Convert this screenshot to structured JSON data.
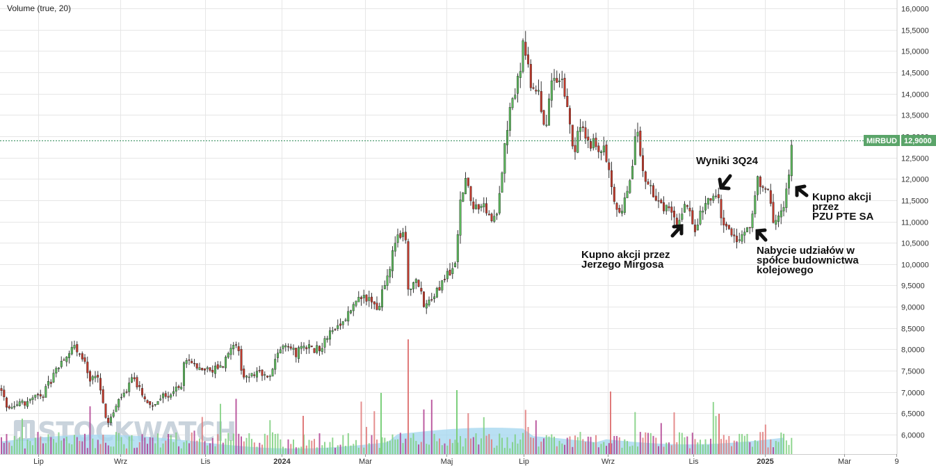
{
  "legend": {
    "label": "Volume (true, 20)"
  },
  "watermark": {
    "text": "STOCKWATCH"
  },
  "price_tag": {
    "symbol": "MIRBUD",
    "value": "12,9000"
  },
  "colors": {
    "up": "#5cb85c",
    "down": "#c0392b",
    "wick": "#333333",
    "vol_up": "#7ccf7c",
    "vol_down": "#e07a7a",
    "vol_mid": "#b04090",
    "vol_ma_fill": "#a8d8f0",
    "grid": "#e6e6e6",
    "price_line": "#2e8b57",
    "tag_bg": "#5aa469"
  },
  "annotations": [
    {
      "lines": [
        "Wyniki 3Q24"
      ]
    },
    {
      "lines": [
        "Kupno akcji",
        "przez",
        "PZU PTE SA"
      ]
    },
    {
      "lines": [
        "Kupno akcji przez",
        "Jerzego Mirgosa"
      ]
    },
    {
      "lines": [
        "Nabycie udziałów w",
        "spółce budownictwa",
        "kolejowego"
      ]
    }
  ],
  "chart_data": {
    "type": "candlestick",
    "y_axis": {
      "min": 5.5,
      "max": 16.0,
      "ticks": [
        {
          "v": 6.0,
          "label": "6,0000"
        },
        {
          "v": 6.5,
          "label": "6,5000"
        },
        {
          "v": 7.0,
          "label": "7,0000"
        },
        {
          "v": 7.5,
          "label": "7,5000"
        },
        {
          "v": 8.0,
          "label": "8,0000"
        },
        {
          "v": 8.5,
          "label": "8,5000"
        },
        {
          "v": 9.0,
          "label": "9,0000"
        },
        {
          "v": 9.5,
          "label": "9,5000"
        },
        {
          "v": 10.0,
          "label": "10,0000"
        },
        {
          "v": 10.5,
          "label": "10,5000"
        },
        {
          "v": 11.0,
          "label": "11,0000"
        },
        {
          "v": 11.5,
          "label": "11,5000"
        },
        {
          "v": 12.0,
          "label": "12,0000"
        },
        {
          "v": 12.5,
          "label": "12,5000"
        },
        {
          "v": 13.0,
          "label": "13,0000"
        },
        {
          "v": 13.5,
          "label": "13,5000"
        },
        {
          "v": 14.0,
          "label": "14,0000"
        },
        {
          "v": 14.5,
          "label": "14,5000"
        },
        {
          "v": 15.0,
          "label": "15,0000"
        },
        {
          "v": 15.5,
          "label": "15,5000"
        },
        {
          "v": 16.0,
          "label": "16,0000"
        }
      ]
    },
    "x_axis": {
      "ticks": [
        {
          "label": "Lip",
          "bold": false
        },
        {
          "label": "Wrz",
          "bold": false
        },
        {
          "label": "Lis",
          "bold": false
        },
        {
          "label": "2024",
          "bold": true
        },
        {
          "label": "Mar",
          "bold": false
        },
        {
          "label": "Maj",
          "bold": false
        },
        {
          "label": "Lip",
          "bold": false
        },
        {
          "label": "Wrz",
          "bold": false
        },
        {
          "label": "Lis",
          "bold": false
        },
        {
          "label": "2025",
          "bold": true
        },
        {
          "label": "Mar",
          "bold": false
        },
        {
          "label": "9",
          "bold": false
        }
      ]
    },
    "last_price": 12.9,
    "path": [
      [
        0,
        7.1
      ],
      [
        10,
        6.6
      ],
      [
        22,
        6.7
      ],
      [
        40,
        6.8
      ],
      [
        60,
        6.9
      ],
      [
        80,
        7.5
      ],
      [
        95,
        7.9
      ],
      [
        108,
        8.0
      ],
      [
        120,
        7.7
      ],
      [
        130,
        7.3
      ],
      [
        142,
        7.4
      ],
      [
        150,
        6.5
      ],
      [
        158,
        6.3
      ],
      [
        165,
        6.6
      ],
      [
        175,
        6.9
      ],
      [
        192,
        7.3
      ],
      [
        205,
        7.0
      ],
      [
        215,
        6.7
      ],
      [
        228,
        6.8
      ],
      [
        245,
        7.0
      ],
      [
        260,
        7.1
      ],
      [
        265,
        7.8
      ],
      [
        280,
        7.6
      ],
      [
        300,
        7.5
      ],
      [
        320,
        7.6
      ],
      [
        338,
        8.3
      ],
      [
        350,
        7.3
      ],
      [
        365,
        7.4
      ],
      [
        390,
        7.4
      ],
      [
        405,
        8.2
      ],
      [
        425,
        7.9
      ],
      [
        440,
        8.1
      ],
      [
        458,
        8.0
      ],
      [
        470,
        8.3
      ],
      [
        490,
        8.5
      ],
      [
        510,
        9.1
      ],
      [
        530,
        9.2
      ],
      [
        545,
        9.0
      ],
      [
        558,
        9.8
      ],
      [
        570,
        10.7
      ],
      [
        582,
        10.8
      ],
      [
        588,
        9.2
      ],
      [
        598,
        9.6
      ],
      [
        612,
        9.0
      ],
      [
        625,
        9.3
      ],
      [
        640,
        9.6
      ],
      [
        655,
        10.1
      ],
      [
        662,
        11.5
      ],
      [
        668,
        12.0
      ],
      [
        680,
        11.4
      ],
      [
        695,
        11.3
      ],
      [
        712,
        11.0
      ],
      [
        722,
        12.3
      ],
      [
        733,
        13.7
      ],
      [
        745,
        14.3
      ],
      [
        752,
        15.1
      ],
      [
        762,
        14.3
      ],
      [
        775,
        14.0
      ],
      [
        785,
        13.2
      ],
      [
        795,
        14.4
      ],
      [
        808,
        14.2
      ],
      [
        818,
        13.3
      ],
      [
        825,
        12.6
      ],
      [
        835,
        13.2
      ],
      [
        848,
        12.9
      ],
      [
        862,
        12.8
      ],
      [
        872,
        12.5
      ],
      [
        882,
        11.4
      ],
      [
        895,
        11.3
      ],
      [
        905,
        11.7
      ],
      [
        915,
        13.2
      ],
      [
        925,
        12.2
      ],
      [
        935,
        11.8
      ],
      [
        948,
        11.5
      ],
      [
        962,
        11.2
      ],
      [
        975,
        11.0
      ],
      [
        985,
        11.5
      ],
      [
        998,
        10.8
      ],
      [
        1008,
        11.3
      ],
      [
        1018,
        11.6
      ],
      [
        1030,
        11.7
      ],
      [
        1042,
        10.9
      ],
      [
        1055,
        10.6
      ],
      [
        1068,
        10.6
      ],
      [
        1080,
        10.9
      ],
      [
        1090,
        12.0
      ],
      [
        1102,
        11.8
      ],
      [
        1112,
        11.1
      ],
      [
        1122,
        11.1
      ],
      [
        1132,
        11.8
      ],
      [
        1140,
        12.9
      ]
    ]
  }
}
